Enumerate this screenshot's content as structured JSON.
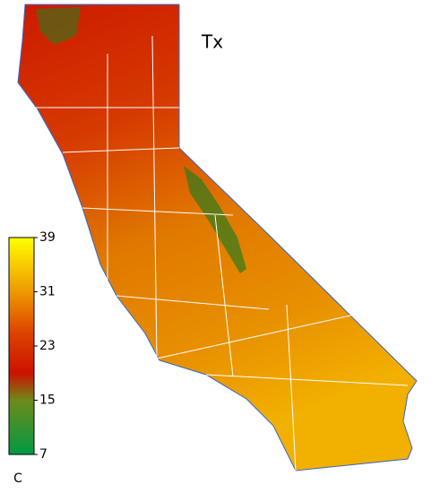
{
  "map": {
    "title": "Tx",
    "colorbar": {
      "unit": "C",
      "lim": [
        7,
        39
      ],
      "ticks": [
        39,
        31,
        23,
        15,
        7
      ],
      "stops": [
        {
          "value": 7,
          "color": "#009a44"
        },
        {
          "value": 15,
          "color": "#6e8a1a"
        },
        {
          "value": 19,
          "color": "#cc1100"
        },
        {
          "value": 25,
          "color": "#dd4400"
        },
        {
          "value": 31,
          "color": "#ee9900"
        },
        {
          "value": 39,
          "color": "#ffff00"
        }
      ]
    }
  }
}
